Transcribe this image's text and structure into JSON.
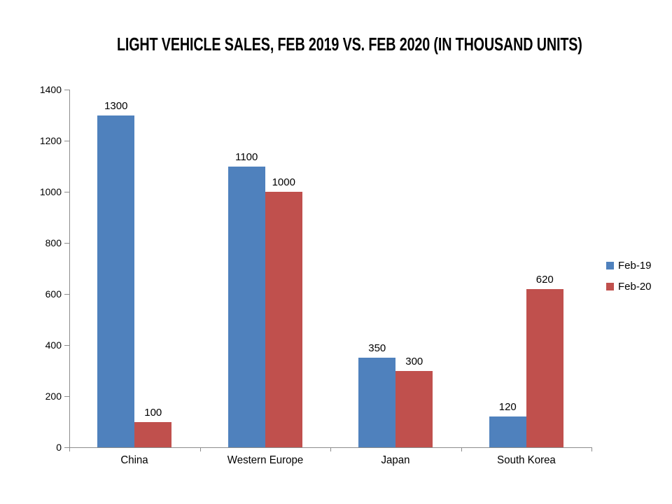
{
  "chart_data": {
    "type": "bar",
    "title": "LIGHT VEHICLE SALES, FEB 2019 VS. FEB 2020 (IN THOUSAND UNITS)",
    "categories": [
      "China",
      "Western Europe",
      "Japan",
      "South Korea"
    ],
    "series": [
      {
        "name": "Feb-19",
        "color": "#4F81BD",
        "values": [
          1300,
          1100,
          350,
          120
        ]
      },
      {
        "name": "Feb-20",
        "color": "#C0504D",
        "values": [
          100,
          1000,
          300,
          620
        ]
      }
    ],
    "xlabel": "",
    "ylabel": "",
    "ylim": [
      0,
      1400
    ],
    "yticks": [
      0,
      200,
      400,
      600,
      800,
      1000,
      1200,
      1400
    ],
    "grid": false,
    "legend_position": "right",
    "data_labels": true,
    "axis_color": "#8C8C8C",
    "text_color": "#000000",
    "background_color": "#FFFFFF"
  }
}
